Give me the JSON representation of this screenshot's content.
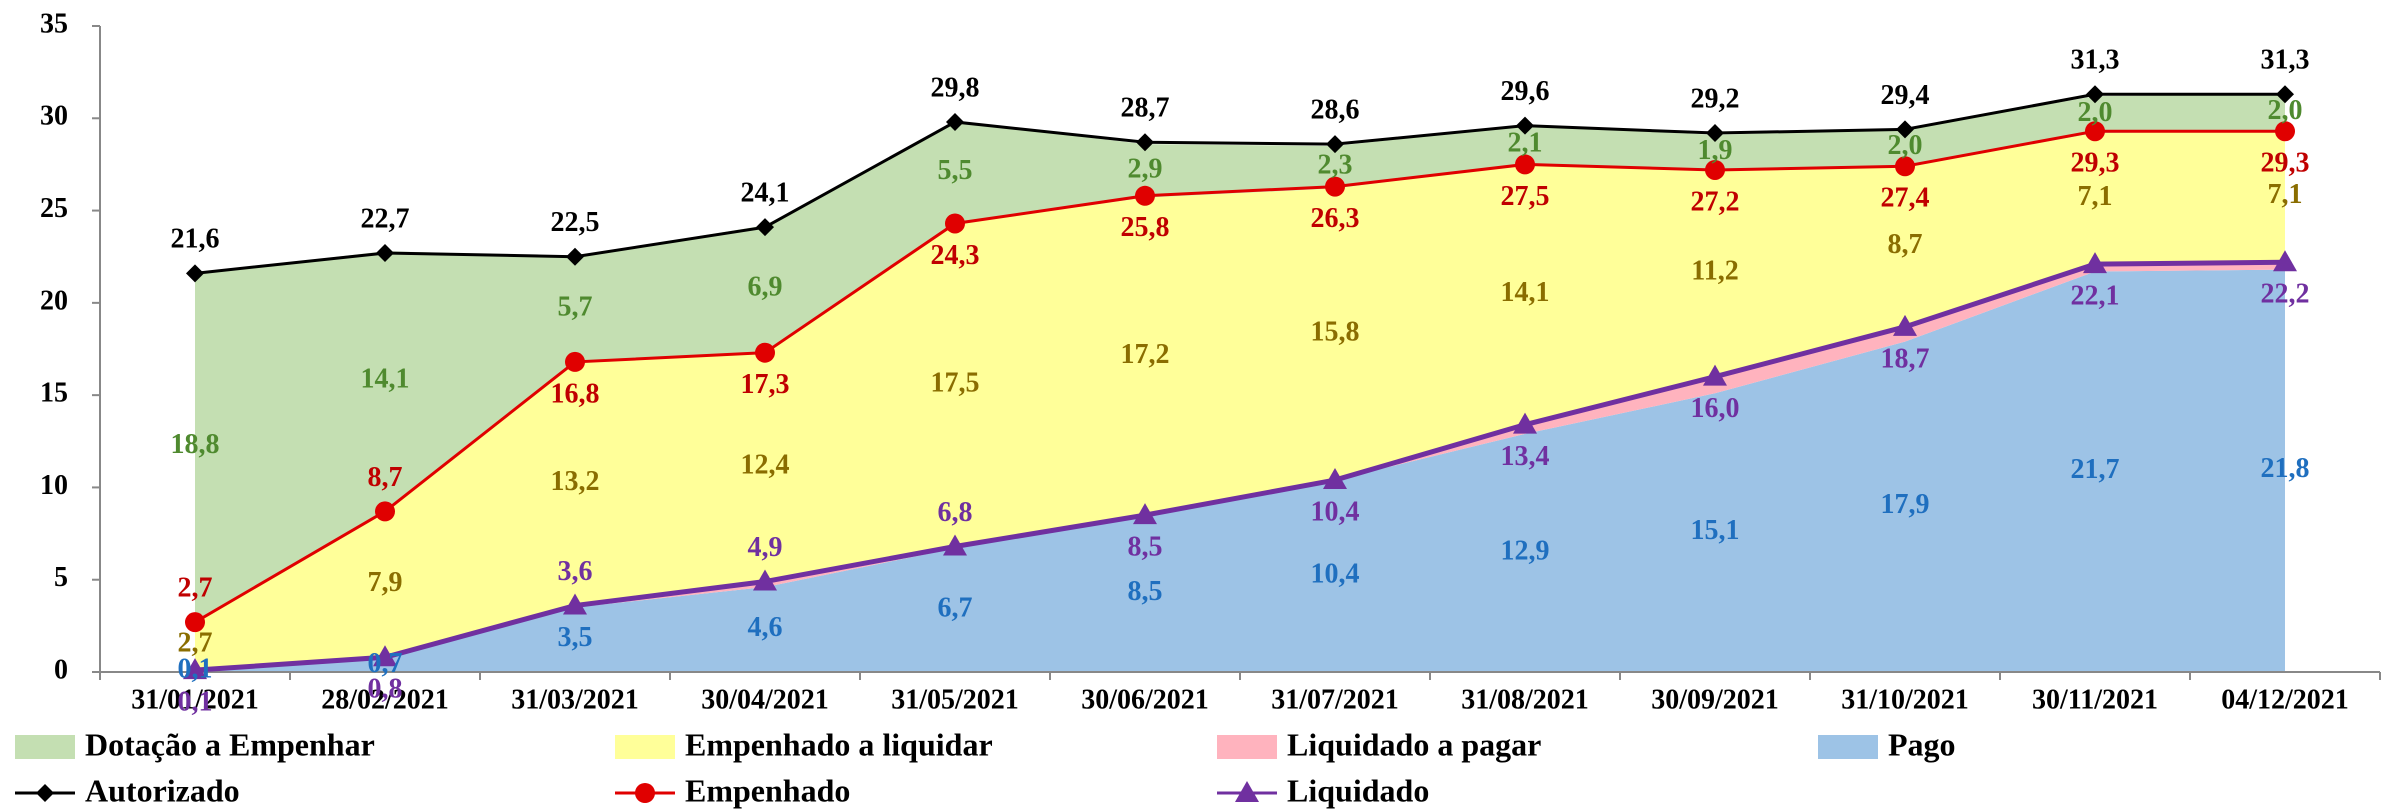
{
  "chart_data": {
    "type": "area",
    "categories": [
      "31/01/2021",
      "28/02/2021",
      "31/03/2021",
      "30/04/2021",
      "31/05/2021",
      "30/06/2021",
      "31/07/2021",
      "31/08/2021",
      "30/09/2021",
      "31/10/2021",
      "30/11/2021",
      "04/12/2021"
    ],
    "ylim": [
      0,
      35
    ],
    "yticks": [
      0,
      5,
      10,
      15,
      20,
      25,
      30,
      35
    ],
    "series": [
      {
        "name": "Dotação a Empenhar",
        "type": "area",
        "color": "#c4dfb2",
        "label_color": "#4f8a2f",
        "values": [
          18.8,
          14.1,
          5.7,
          6.9,
          5.5,
          2.9,
          2.3,
          2.1,
          1.9,
          2.0,
          2.0,
          2.0
        ],
        "value_labels": [
          "18,8",
          "14,1",
          "5,7",
          "6,9",
          "5,5",
          "2,9",
          "2,3",
          "2,1",
          "1,9",
          "2,0",
          "2,0",
          "2,0"
        ]
      },
      {
        "name": "Empenhado a liquidar",
        "type": "area",
        "color": "#ffff99",
        "label_color": "#8a6d00",
        "values": [
          2.7,
          7.9,
          13.2,
          12.4,
          17.5,
          17.2,
          15.8,
          14.1,
          11.2,
          8.7,
          7.1,
          7.1
        ],
        "value_labels": [
          "2,7",
          "7,9",
          "13,2",
          "12,4",
          "17,5",
          "17,2",
          "15,8",
          "14,1",
          "11,2",
          "8,7",
          "7,1",
          "7,1"
        ]
      },
      {
        "name": "Liquidado a pagar",
        "type": "area",
        "color": "#ffb3be",
        "values": [
          0,
          0.1,
          0.1,
          0.3,
          0.1,
          0,
          0,
          0.5,
          0.9,
          0.8,
          0.4,
          0.4
        ]
      },
      {
        "name": "Pago",
        "type": "area",
        "color": "#9dc3e6",
        "label_color": "#1f6fbf",
        "values": [
          0.1,
          0.7,
          3.5,
          4.6,
          6.7,
          8.5,
          10.4,
          12.9,
          15.1,
          17.9,
          21.7,
          21.8
        ],
        "value_labels": [
          "0,1",
          "0,7",
          "3,5",
          "4,6",
          "6,7",
          "8,5",
          "10,4",
          "12,9",
          "15,1",
          "17,9",
          "21,7",
          "21,8"
        ]
      },
      {
        "name": "Autorizado",
        "type": "line",
        "marker": "diamond",
        "color": "#000000",
        "label_color": "#000000",
        "values": [
          21.6,
          22.7,
          22.5,
          24.1,
          29.8,
          28.7,
          28.6,
          29.6,
          29.2,
          29.4,
          31.3,
          31.3
        ],
        "value_labels": [
          "21,6",
          "22,7",
          "22,5",
          "24,1",
          "29,8",
          "28,7",
          "28,6",
          "29,6",
          "29,2",
          "29,4",
          "31,3",
          "31,3"
        ]
      },
      {
        "name": "Empenhado",
        "type": "line",
        "marker": "circle",
        "color": "#e00000",
        "label_color": "#c00000",
        "values": [
          2.7,
          8.7,
          16.8,
          17.3,
          24.3,
          25.8,
          26.3,
          27.5,
          27.2,
          27.4,
          29.3,
          29.3
        ],
        "value_labels": [
          "2,7",
          "8,7",
          "16,8",
          "17,3",
          "24,3",
          "25,8",
          "26,3",
          "27,5",
          "27,2",
          "27,4",
          "29,3",
          "29,3"
        ]
      },
      {
        "name": "Liquidado",
        "type": "line",
        "marker": "triangle",
        "color": "#7030a0",
        "label_color": "#7030a0",
        "values": [
          0.1,
          0.8,
          3.6,
          4.9,
          6.8,
          8.5,
          10.4,
          13.4,
          16.0,
          18.7,
          22.1,
          22.2
        ],
        "value_labels": [
          "0,1",
          "0,8",
          "3,6",
          "4,9",
          "6,8",
          "8,5",
          "10,4",
          "13,4",
          "16,0",
          "18,7",
          "22,1",
          "22,2"
        ]
      }
    ]
  }
}
